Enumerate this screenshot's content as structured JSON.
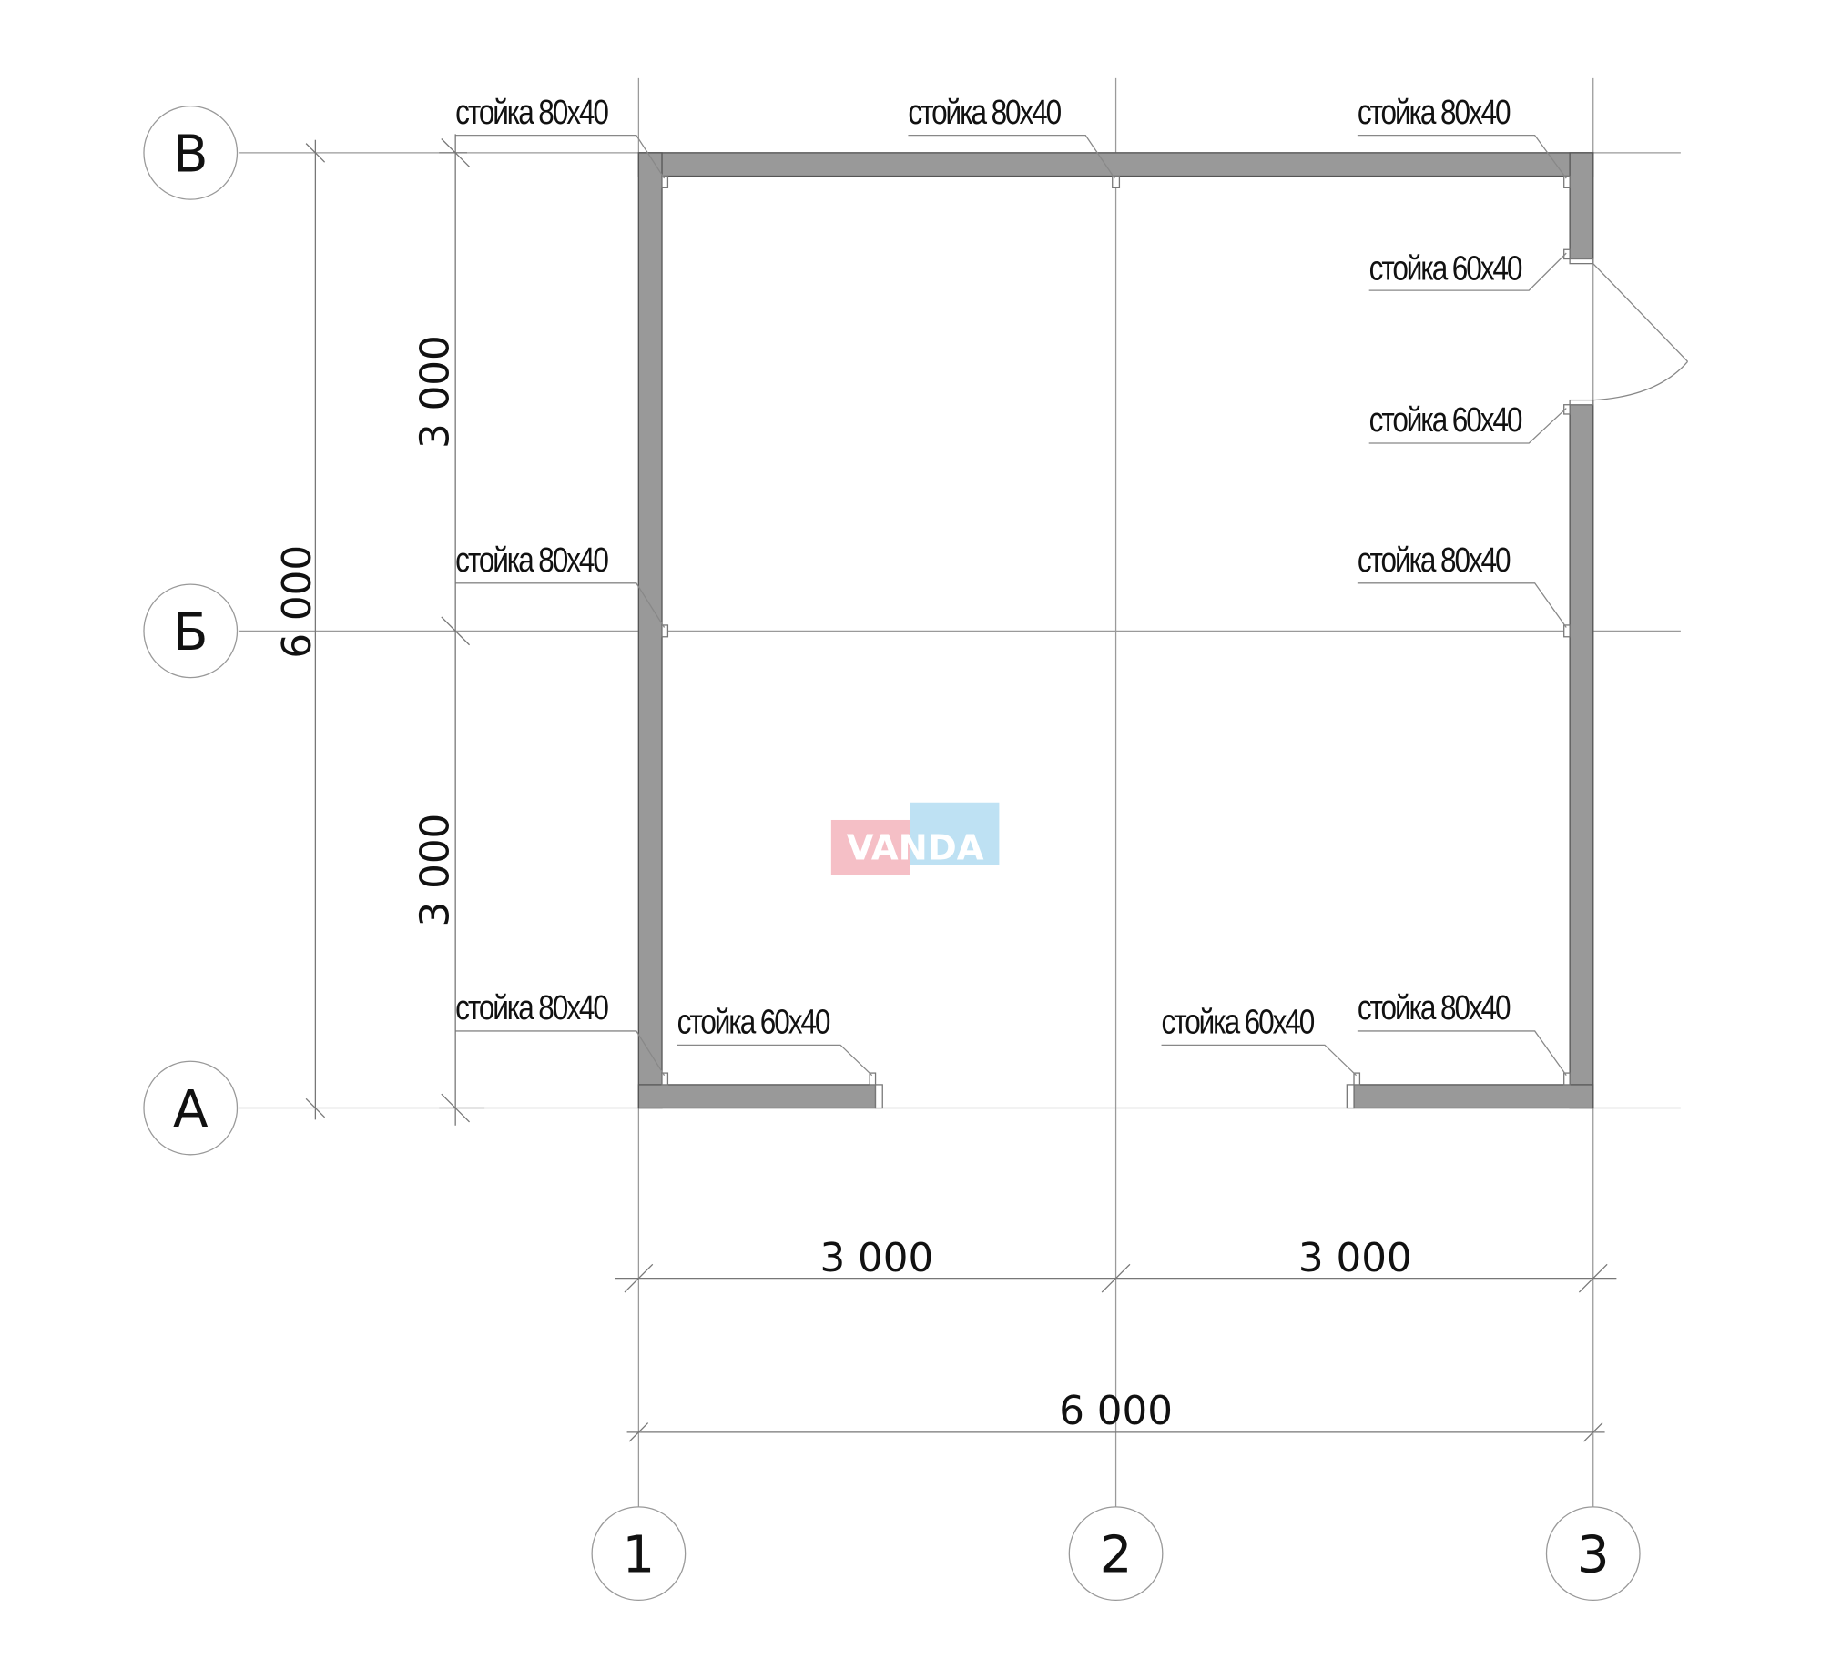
{
  "axes": {
    "rows": [
      "В",
      "Б",
      "А"
    ],
    "columns": [
      "1",
      "2",
      "3"
    ]
  },
  "labels": {
    "post_80x40": "стойка 80x40",
    "post_60x40": "стойка 60x40"
  },
  "dimensions": {
    "total_height": "6 000",
    "upper_span": "3 000",
    "lower_span": "3 000",
    "left_span": "3 000",
    "right_span": "3 000",
    "total_width": "6 000"
  },
  "watermark": {
    "text": "VANDA",
    "colors": [
      "#f2aab4",
      "#a9d8f0"
    ]
  },
  "colors": {
    "wall": "#999999",
    "grid": "#9a9a9a"
  }
}
